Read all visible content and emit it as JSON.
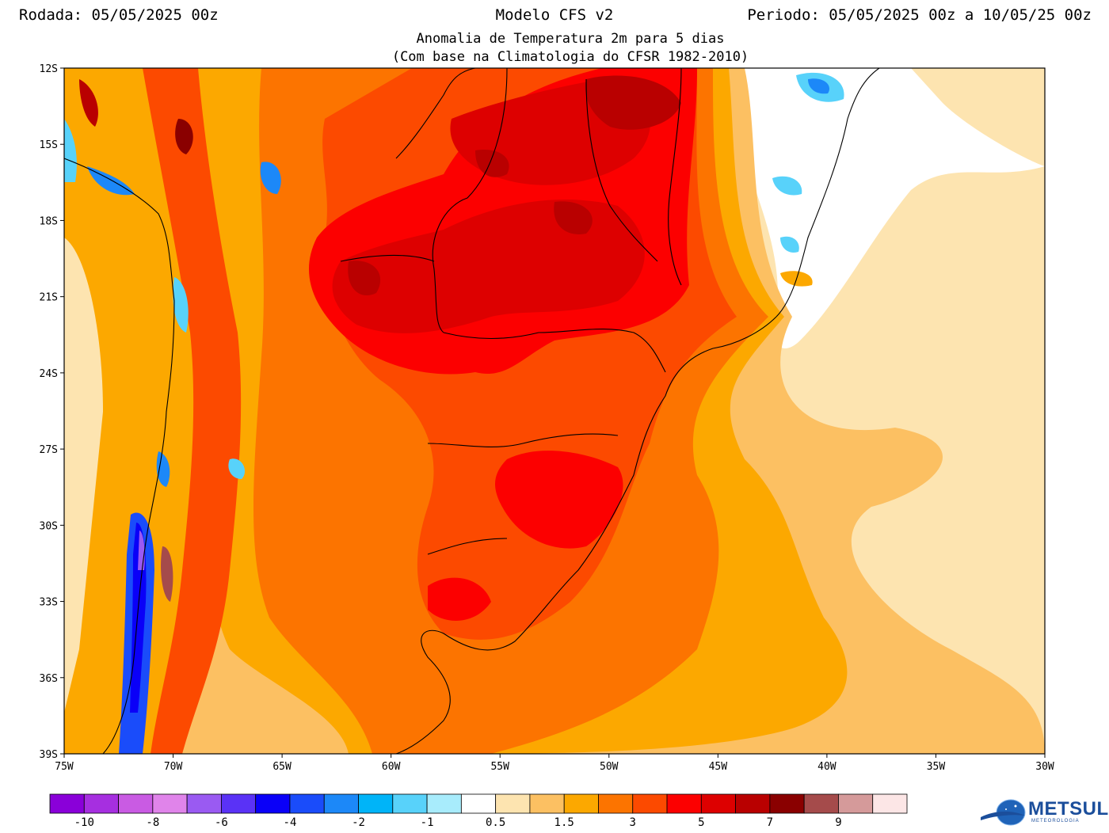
{
  "header": {
    "run": "Rodada: 05/05/2025 00z",
    "model": "Modelo CFS v2",
    "period": "Periodo: 05/05/2025 00z a 10/05/25 00z",
    "subtitle1": "Anomalia de Temperatura 2m para 5 dias",
    "subtitle2": "(Com base na Climatologia do CFSR 1982-2010)"
  },
  "map": {
    "lat_labels": [
      "12S",
      "15S",
      "18S",
      "21S",
      "24S",
      "27S",
      "30S",
      "33S",
      "36S",
      "39S"
    ],
    "lon_labels": [
      "75W",
      "70W",
      "65W",
      "60W",
      "55W",
      "50W",
      "45W",
      "40W",
      "35W",
      "30W"
    ],
    "extent": {
      "lon_min": -75,
      "lon_max": -30,
      "lat_min": -39,
      "lat_max": -12
    }
  },
  "colorbar": {
    "colors": [
      "#8a00d9",
      "#a62fe0",
      "#c95be3",
      "#e084ea",
      "#9a5af2",
      "#5a32f6",
      "#0a00f8",
      "#1a4cfa",
      "#1c88f8",
      "#00b4f8",
      "#58d2fa",
      "#a8ecfc",
      "#ffffff",
      "#fde4b0",
      "#fcc062",
      "#fca800",
      "#fc7400",
      "#fc4a00",
      "#fc0000",
      "#dd0000",
      "#b90000",
      "#8a0000",
      "#a54b4b",
      "#d59a9a",
      "#fce6e6"
    ],
    "labels": [
      "-10",
      "-8",
      "-6",
      "-4",
      "-2",
      "-1",
      "0.5",
      "1.5",
      "3",
      "5",
      "7",
      "9"
    ]
  },
  "logo": {
    "name": "METSUL",
    "tagline": "METEOROLOGIA"
  }
}
